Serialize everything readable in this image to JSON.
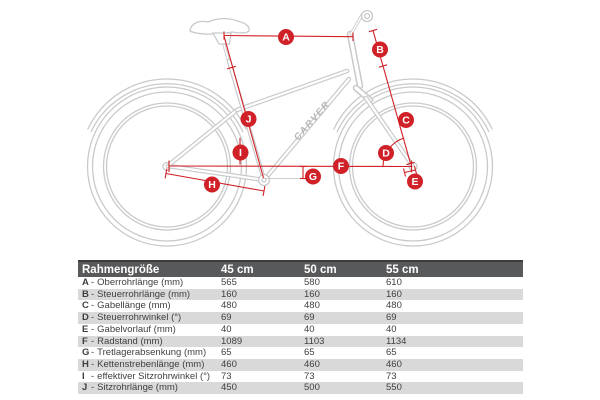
{
  "diagram": {
    "brand": "CARVER",
    "labels": [
      {
        "letter": "A"
      },
      {
        "letter": "B"
      },
      {
        "letter": "C"
      },
      {
        "letter": "D"
      },
      {
        "letter": "E"
      },
      {
        "letter": "F"
      },
      {
        "letter": "G"
      },
      {
        "letter": "H"
      },
      {
        "letter": "I"
      },
      {
        "letter": "J"
      }
    ]
  },
  "table": {
    "header": {
      "col0": "Rahmengröße",
      "col1": "45 cm",
      "col2": "50 cm",
      "col3": "55 cm"
    },
    "separator": "-",
    "rows": [
      {
        "letter": "A",
        "label": "Oberrohrlänge (mm)",
        "values": [
          "565",
          "580",
          "610"
        ]
      },
      {
        "letter": "B",
        "label": "Steuerrohrlänge (mm)",
        "values": [
          "160",
          "160",
          "160"
        ]
      },
      {
        "letter": "C",
        "label": "Gabellänge (mm)",
        "values": [
          "480",
          "480",
          "480"
        ]
      },
      {
        "letter": "D",
        "label": "Steuerrohrwinkel (°)",
        "values": [
          "69",
          "69",
          "69"
        ]
      },
      {
        "letter": "E",
        "label": "Gabelvorlauf (mm)",
        "values": [
          "40",
          "40",
          "40"
        ]
      },
      {
        "letter": "F",
        "label": "Radstand (mm)",
        "values": [
          "1089",
          "1103",
          "1134"
        ]
      },
      {
        "letter": "G",
        "label": "Tretlagerabsenkung (mm)",
        "values": [
          "65",
          "65",
          "65"
        ]
      },
      {
        "letter": "H",
        "label": "Kettenstrebenlänge (mm)",
        "values": [
          "460",
          "460",
          "460"
        ]
      },
      {
        "letter": "I",
        "label": "effektiver Sitzrohrwinkel (°)",
        "values": [
          "73",
          "73",
          "73"
        ]
      },
      {
        "letter": "J",
        "label": "Sitzrohrlänge (mm)",
        "values": [
          "450",
          "500",
          "550"
        ]
      }
    ]
  },
  "colors": {
    "accent_red": "#cf2127",
    "header_bg": "#58595b",
    "stripe": "#d9d9d9",
    "line_gray": "#c9cacc"
  }
}
